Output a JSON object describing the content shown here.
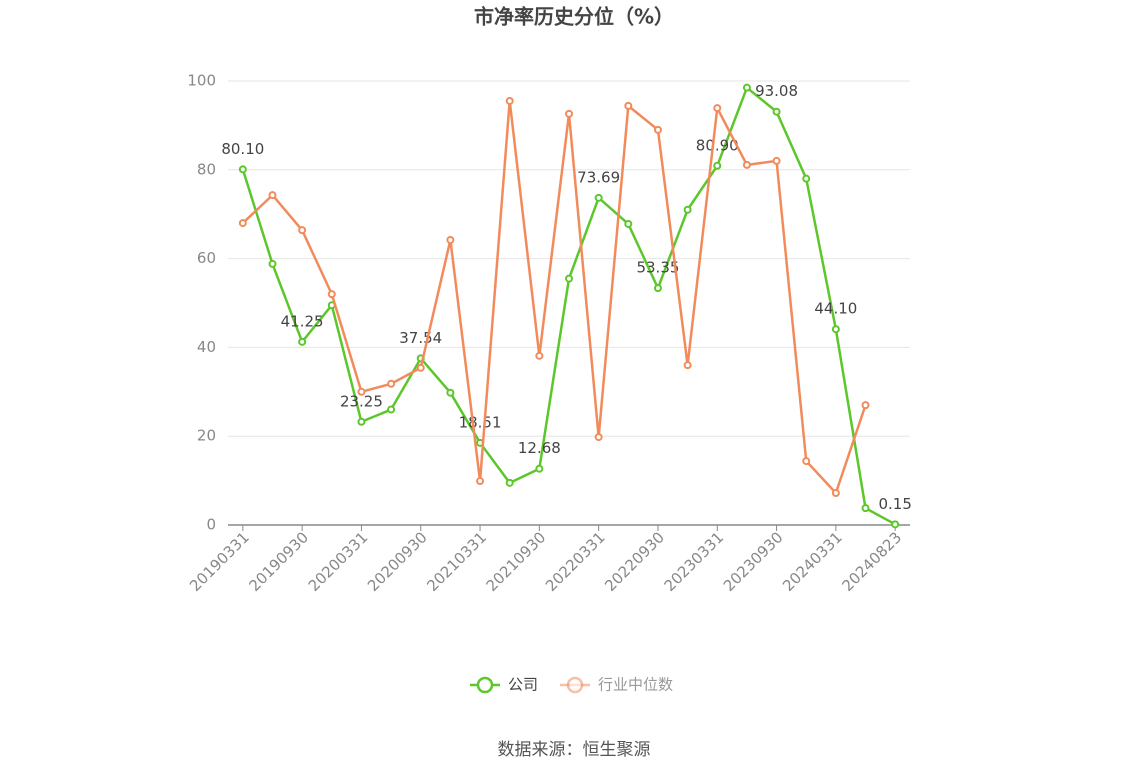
{
  "chart_data": {
    "type": "line",
    "title": "市净率历史分位（%）",
    "categories": [
      "20190331",
      null,
      "20190930",
      null,
      "20200331",
      null,
      "20200930",
      null,
      "20210331",
      null,
      "20210930",
      null,
      "20220331",
      null,
      "20220930",
      null,
      "20230331",
      null,
      "20230930",
      null,
      "20240331",
      null,
      "20240823"
    ],
    "series": [
      {
        "name": "公司",
        "color": "#5cc72a",
        "values": [
          80.1,
          58.8,
          41.25,
          49.5,
          23.25,
          26.0,
          37.54,
          29.8,
          18.51,
          9.5,
          12.68,
          55.5,
          73.69,
          67.8,
          53.35,
          71.0,
          80.9,
          98.5,
          93.08,
          78.0,
          44.1,
          3.8,
          0.15
        ],
        "value_labels": [
          "80.10",
          null,
          "41.25",
          null,
          "23.25",
          null,
          "37.54",
          null,
          "18.51",
          null,
          "12.68",
          null,
          "73.69",
          null,
          "53.35",
          null,
          "80.90",
          null,
          "93.08",
          null,
          "44.10",
          null,
          "0.15"
        ]
      },
      {
        "name": "行业中位数",
        "color": "#f28b5b",
        "values": [
          68.0,
          74.3,
          66.4,
          52.0,
          30.0,
          31.8,
          35.4,
          64.2,
          9.9,
          95.5,
          38.1,
          92.6,
          19.8,
          94.4,
          89.0,
          36.0,
          93.9,
          81.1,
          82.0,
          14.4,
          7.2,
          27.0,
          null
        ]
      }
    ],
    "ylim": [
      0,
      100
    ],
    "yticks": [
      0,
      20,
      40,
      60,
      80,
      100
    ],
    "grid": true,
    "legend": "bottom",
    "source": "数据来源：恒生聚源"
  }
}
